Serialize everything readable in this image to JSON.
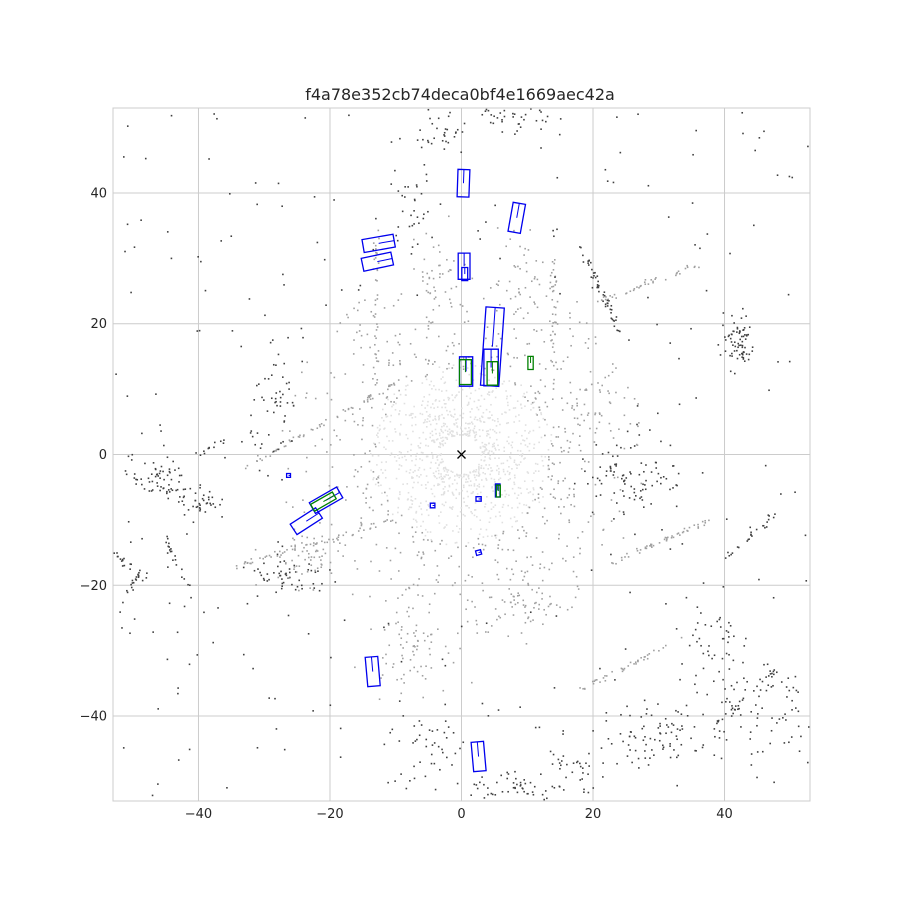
{
  "chart_data": {
    "type": "scatter",
    "title": "f4a78e352cb74deca0bf4e1669aec42a",
    "xlabel": "",
    "ylabel": "",
    "xlim": [
      -53,
      53
    ],
    "ylim": [
      -53,
      53
    ],
    "x_ticks": [
      -40,
      -20,
      0,
      20,
      40
    ],
    "y_ticks": [
      -40,
      -20,
      0,
      20,
      40
    ],
    "x_tick_labels": [
      "−40",
      "−20",
      "0",
      "20",
      "40"
    ],
    "y_tick_labels": [
      "−40",
      "−20",
      "0",
      "20",
      "40"
    ],
    "grid": true,
    "aspect": "equal",
    "ego_marker": {
      "x": 0,
      "y": 0,
      "symbol": "x"
    },
    "colors": {
      "grid": "#cccccc",
      "axes_edge": "#cccccc",
      "ego": "#000000",
      "box_blue": "#0000ee",
      "box_green": "#008000",
      "points_near": "#e0e0e0",
      "points_mid": "#a0a0a0",
      "points_far": "#404040"
    },
    "blue_boxes": [
      {
        "cx": 0.3,
        "cy": 41.5,
        "w": 1.8,
        "l": 4.2,
        "yaw": 88
      },
      {
        "cx": 8.4,
        "cy": 36.2,
        "w": 1.9,
        "l": 4.5,
        "yaw": 80
      },
      {
        "cx": -12.6,
        "cy": 32.3,
        "w": 2.0,
        "l": 4.8,
        "yaw": 10
      },
      {
        "cx": -12.8,
        "cy": 29.5,
        "w": 2.0,
        "l": 4.6,
        "yaw": 12
      },
      {
        "cx": 0.4,
        "cy": 28.8,
        "w": 1.8,
        "l": 4.0,
        "yaw": 90
      },
      {
        "cx": 0.5,
        "cy": 27.6,
        "w": 0.9,
        "l": 2.0,
        "yaw": 90
      },
      {
        "cx": 4.7,
        "cy": 16.5,
        "w": 2.8,
        "l": 12.0,
        "yaw": 86
      },
      {
        "cx": 4.5,
        "cy": 13.3,
        "w": 2.2,
        "l": 5.6,
        "yaw": 90
      },
      {
        "cx": 0.7,
        "cy": 12.7,
        "w": 2.0,
        "l": 4.5,
        "yaw": 90
      },
      {
        "cx": -20.6,
        "cy": -7.0,
        "w": 1.9,
        "l": 4.8,
        "yaw": 30
      },
      {
        "cx": -23.6,
        "cy": -10.2,
        "w": 1.9,
        "l": 4.6,
        "yaw": 33
      },
      {
        "cx": -26.3,
        "cy": -3.2,
        "w": 0.6,
        "l": 0.6,
        "yaw": 0
      },
      {
        "cx": -4.4,
        "cy": -7.8,
        "w": 0.7,
        "l": 0.7,
        "yaw": 0
      },
      {
        "cx": 2.6,
        "cy": -6.8,
        "w": 0.7,
        "l": 0.8,
        "yaw": 0
      },
      {
        "cx": 5.5,
        "cy": -5.5,
        "w": 0.7,
        "l": 2.0,
        "yaw": 90
      },
      {
        "cx": 2.6,
        "cy": -15.0,
        "w": 0.7,
        "l": 0.8,
        "yaw": 15
      },
      {
        "cx": -13.5,
        "cy": -33.2,
        "w": 1.9,
        "l": 4.5,
        "yaw": 95
      },
      {
        "cx": 2.6,
        "cy": -46.2,
        "w": 1.9,
        "l": 4.5,
        "yaw": 95
      }
    ],
    "green_boxes": [
      {
        "cx": 10.5,
        "cy": 14.0,
        "w": 0.8,
        "l": 2.0,
        "yaw": 90
      },
      {
        "cx": 0.6,
        "cy": 12.6,
        "w": 1.8,
        "l": 3.8,
        "yaw": 90
      },
      {
        "cx": 4.7,
        "cy": 12.4,
        "w": 1.6,
        "l": 3.6,
        "yaw": 90
      },
      {
        "cx": -21.0,
        "cy": -7.2,
        "w": 1.2,
        "l": 3.8,
        "yaw": 30
      },
      {
        "cx": 5.6,
        "cy": -5.6,
        "w": 0.6,
        "l": 1.8,
        "yaw": 90
      }
    ],
    "point_clusters": [
      {
        "shade": "near",
        "kind": "ring",
        "cx": 0,
        "cy": 0,
        "r_min": 3,
        "r_max": 14,
        "n": 900
      },
      {
        "shade": "mid",
        "kind": "ring",
        "cx": 0,
        "cy": 0,
        "r_min": 13,
        "r_max": 28,
        "n": 500
      },
      {
        "shade": "mid",
        "kind": "line",
        "x1": -33,
        "y1": -2,
        "x2": -8,
        "y2": 12,
        "n": 60
      },
      {
        "shade": "mid",
        "kind": "line",
        "x1": -34,
        "y1": -17,
        "x2": -10,
        "y2": -10,
        "n": 60
      },
      {
        "shade": "mid",
        "kind": "line",
        "x1": 20,
        "y1": 23,
        "x2": 36,
        "y2": 29,
        "n": 40
      },
      {
        "shade": "mid",
        "kind": "line",
        "x1": 22,
        "y1": -17,
        "x2": 38,
        "y2": -10,
        "n": 50
      },
      {
        "shade": "mid",
        "kind": "line",
        "x1": 18,
        "y1": -36,
        "x2": 34,
        "y2": -28,
        "n": 40
      },
      {
        "shade": "mid",
        "kind": "line",
        "x1": -13,
        "y1": 10,
        "x2": -13,
        "y2": 35,
        "n": 40
      },
      {
        "shade": "mid",
        "kind": "line",
        "x1": 14,
        "y1": 10,
        "x2": 14,
        "y2": 30,
        "n": 40
      },
      {
        "shade": "far",
        "kind": "line",
        "x1": 18,
        "y1": 32,
        "x2": 24,
        "y2": 19,
        "n": 50
      },
      {
        "shade": "far",
        "kind": "line",
        "x1": -40,
        "y1": 0,
        "x2": -36,
        "y2": 2,
        "n": 12
      },
      {
        "shade": "far",
        "kind": "line",
        "x1": -53,
        "y1": -15,
        "x2": -48,
        "y2": -19,
        "n": 20
      },
      {
        "shade": "far",
        "kind": "line",
        "x1": -45,
        "y1": -13,
        "x2": -41,
        "y2": -22,
        "n": 20
      },
      {
        "shade": "far",
        "kind": "line",
        "x1": -49,
        "y1": -18,
        "x2": -52,
        "y2": -23,
        "n": 15
      },
      {
        "shade": "far",
        "kind": "line",
        "x1": 38,
        "y1": -42,
        "x2": 48,
        "y2": -33,
        "n": 30
      },
      {
        "shade": "far",
        "kind": "line",
        "x1": 40,
        "y1": -16,
        "x2": 48,
        "y2": -9,
        "n": 25
      },
      {
        "shade": "far",
        "kind": "blob",
        "cx": 42,
        "cy": 17,
        "sx": 1.3,
        "sy": 2,
        "n": 70
      },
      {
        "shade": "far",
        "kind": "blob",
        "cx": -46,
        "cy": -4,
        "sx": 2,
        "sy": 1.5,
        "n": 60
      },
      {
        "shade": "far",
        "kind": "blob",
        "cx": -40,
        "cy": -7,
        "sx": 1.5,
        "sy": 1.5,
        "n": 40
      },
      {
        "shade": "far",
        "kind": "blob",
        "cx": 26,
        "cy": -3,
        "sx": 4,
        "sy": 3,
        "n": 90
      },
      {
        "shade": "far",
        "kind": "blob",
        "cx": 30,
        "cy": -43,
        "sx": 4,
        "sy": 2.5,
        "n": 80
      },
      {
        "shade": "far",
        "kind": "blob",
        "cx": 45,
        "cy": -38,
        "sx": 4,
        "sy": 4,
        "n": 70
      },
      {
        "shade": "far",
        "kind": "blob",
        "cx": 9,
        "cy": -51,
        "sx": 4,
        "sy": 1.2,
        "n": 50
      },
      {
        "shade": "far",
        "kind": "blob",
        "cx": -5,
        "cy": -44,
        "sx": 3,
        "sy": 3,
        "n": 40
      },
      {
        "shade": "far",
        "kind": "blob",
        "cx": 8,
        "cy": 51,
        "sx": 3,
        "sy": 1.5,
        "n": 40
      },
      {
        "shade": "far",
        "kind": "blob",
        "cx": -3,
        "cy": 49,
        "sx": 2,
        "sy": 2,
        "n": 30
      },
      {
        "shade": "far",
        "kind": "blob",
        "cx": -28,
        "cy": 7,
        "sx": 2,
        "sy": 4,
        "n": 50
      },
      {
        "shade": "far",
        "kind": "blob",
        "cx": -26,
        "cy": -19,
        "sx": 3,
        "sy": 1.5,
        "n": 50
      },
      {
        "shade": "far",
        "kind": "blob",
        "cx": 38,
        "cy": -30,
        "sx": 3,
        "sy": 4,
        "n": 45
      },
      {
        "shade": "far",
        "kind": "blob",
        "cx": 17,
        "cy": -48,
        "sx": 2,
        "sy": 2,
        "n": 30
      },
      {
        "shade": "far",
        "kind": "blob",
        "cx": -8,
        "cy": 37,
        "sx": 2,
        "sy": 3,
        "n": 30
      },
      {
        "shade": "mid",
        "kind": "blob",
        "cx": -8,
        "cy": -28,
        "sx": 3,
        "sy": 4,
        "n": 80
      },
      {
        "shade": "mid",
        "kind": "blob",
        "cx": 10,
        "cy": -22,
        "sx": 3,
        "sy": 3,
        "n": 70
      },
      {
        "shade": "mid",
        "kind": "blob",
        "cx": -24,
        "cy": -16,
        "sx": 3,
        "sy": 2,
        "n": 50
      },
      {
        "shade": "mid",
        "kind": "blob",
        "cx": 20,
        "cy": 6,
        "sx": 3,
        "sy": 3,
        "n": 40
      },
      {
        "shade": "mid",
        "kind": "blob",
        "cx": -4,
        "cy": 27,
        "sx": 2,
        "sy": 4,
        "n": 40
      },
      {
        "shade": "mid",
        "kind": "blob",
        "cx": 9,
        "cy": 27,
        "sx": 2,
        "sy": 4,
        "n": 40
      },
      {
        "shade": "far",
        "kind": "scatter",
        "x_min": -53,
        "x_max": 53,
        "y_min": -53,
        "y_max": 53,
        "min_r": 25,
        "n": 260
      }
    ]
  }
}
